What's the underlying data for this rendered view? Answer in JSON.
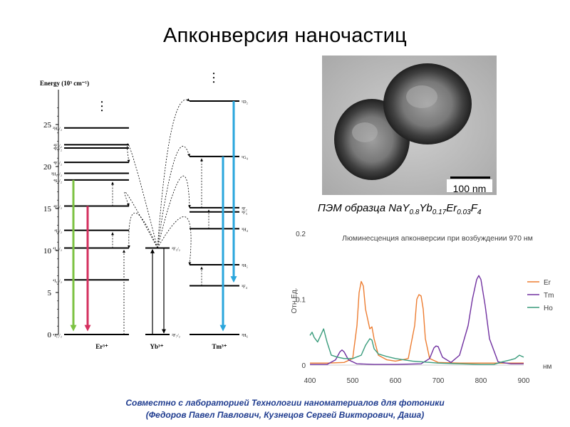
{
  "slide": {
    "title": "Апконверсия наночастиц",
    "footer_line1": "Совместно с лабораторией Технологии наноматериалов для фотоники",
    "footer_line2": "(Федоров Павел Павлович, Кузнецов Сергей Викторович, Даша)"
  },
  "tem": {
    "caption_prefix": "ПЭМ образца NaY",
    "y_sub": "0.8",
    "yb": "Yb",
    "yb_sub": "0.17",
    "er": "Er",
    "er_sub": "0.03",
    "f": "F",
    "f_sub": "4",
    "scale_bar": "100 nm"
  },
  "energy_diagram": {
    "axis_title": "Energy (10³ cm⁻¹)",
    "y_ticks": [
      0,
      5,
      10,
      15,
      20,
      25
    ],
    "ions": [
      {
        "name": "Er³⁺",
        "levels": [
          {
            "label": "⁴I₁₅/₂",
            "energy": 0
          },
          {
            "label": "⁴I₁₃/₂",
            "energy": 6.5
          },
          {
            "label": "⁴I₁₁/₂",
            "energy": 10.3
          },
          {
            "label": "⁴I₉/₂",
            "energy": 12.4
          },
          {
            "label": "⁴F₉/₂",
            "energy": 15.3
          },
          {
            "label": "⁴S₃/₂",
            "energy": 18.4
          },
          {
            "label": "²H₁₁/₂",
            "energy": 19.2
          },
          {
            "label": "⁴F₇/₂",
            "energy": 20.5
          },
          {
            "label": "⁴F₅/₂",
            "energy": 22.2
          },
          {
            "label": "⁴F₃/₂",
            "energy": 22.6
          },
          {
            "label": "²H₉/₂",
            "energy": 24.6
          }
        ]
      },
      {
        "name": "Yb³⁺",
        "levels": [
          {
            "label": "²F₇/₂",
            "energy": 0
          },
          {
            "label": "²F₅/₂",
            "energy": 10.3
          }
        ]
      },
      {
        "name": "Tm³⁺",
        "levels": [
          {
            "label": "³H₆",
            "energy": 0
          },
          {
            "label": "³F₄",
            "energy": 5.8
          },
          {
            "label": "³H₅",
            "energy": 8.3
          },
          {
            "label": "³H₄",
            "energy": 12.6
          },
          {
            "label": "³F₃",
            "energy": 14.6
          },
          {
            "label": "³F₂",
            "energy": 15.1
          },
          {
            "label": "¹G₄",
            "energy": 21.2
          },
          {
            "label": "¹D₂",
            "energy": 27.8
          }
        ]
      }
    ]
  },
  "chart_data": {
    "type": "line",
    "title": "Люминесценция апконверсии при возбуждении 970 нм",
    "xlabel": "нм",
    "ylabel": "Отн.Ед.",
    "xlim": [
      400,
      900
    ],
    "ylim": [
      0,
      0.2
    ],
    "x_ticks": [
      400,
      500,
      600,
      700,
      800,
      900
    ],
    "y_ticks": [
      0,
      0.1,
      0.2
    ],
    "grid": false,
    "legend": "right",
    "series": [
      {
        "name": "Er",
        "color": "#ed7d31",
        "x": [
          400,
          440,
          480,
          500,
          510,
          515,
          520,
          525,
          530,
          540,
          545,
          550,
          560,
          580,
          600,
          630,
          645,
          650,
          655,
          660,
          665,
          670,
          680,
          700,
          750,
          800,
          850,
          900
        ],
        "y": [
          0.003,
          0.003,
          0.004,
          0.01,
          0.06,
          0.11,
          0.127,
          0.12,
          0.085,
          0.055,
          0.058,
          0.04,
          0.015,
          0.008,
          0.006,
          0.01,
          0.06,
          0.1,
          0.107,
          0.105,
          0.085,
          0.04,
          0.01,
          0.004,
          0.003,
          0.003,
          0.003,
          0.003
        ]
      },
      {
        "name": "Tm",
        "color": "#7030a0",
        "x": [
          400,
          440,
          460,
          470,
          475,
          480,
          490,
          510,
          550,
          600,
          660,
          680,
          690,
          695,
          700,
          710,
          730,
          750,
          770,
          780,
          790,
          795,
          800,
          810,
          820,
          840,
          870,
          900
        ],
        "y": [
          0.001,
          0.001,
          0.008,
          0.02,
          0.023,
          0.02,
          0.008,
          0.002,
          0.001,
          0.001,
          0.002,
          0.01,
          0.026,
          0.029,
          0.028,
          0.012,
          0.004,
          0.015,
          0.06,
          0.1,
          0.13,
          0.136,
          0.13,
          0.09,
          0.04,
          0.005,
          0.002,
          0.002
        ]
      },
      {
        "name": "Ho",
        "color": "#3a9c7c",
        "x": [
          400,
          405,
          410,
          418,
          425,
          432,
          440,
          450,
          465,
          480,
          500,
          520,
          530,
          540,
          545,
          550,
          560,
          580,
          600,
          640,
          700,
          750,
          800,
          830,
          850,
          870,
          880,
          890,
          900
        ],
        "y": [
          0.045,
          0.05,
          0.042,
          0.035,
          0.045,
          0.055,
          0.035,
          0.015,
          0.012,
          0.01,
          0.01,
          0.015,
          0.03,
          0.04,
          0.038,
          0.025,
          0.017,
          0.013,
          0.01,
          0.006,
          0.003,
          0.002,
          0.001,
          0.001,
          0.005,
          0.008,
          0.01,
          0.015,
          0.012
        ]
      }
    ]
  }
}
